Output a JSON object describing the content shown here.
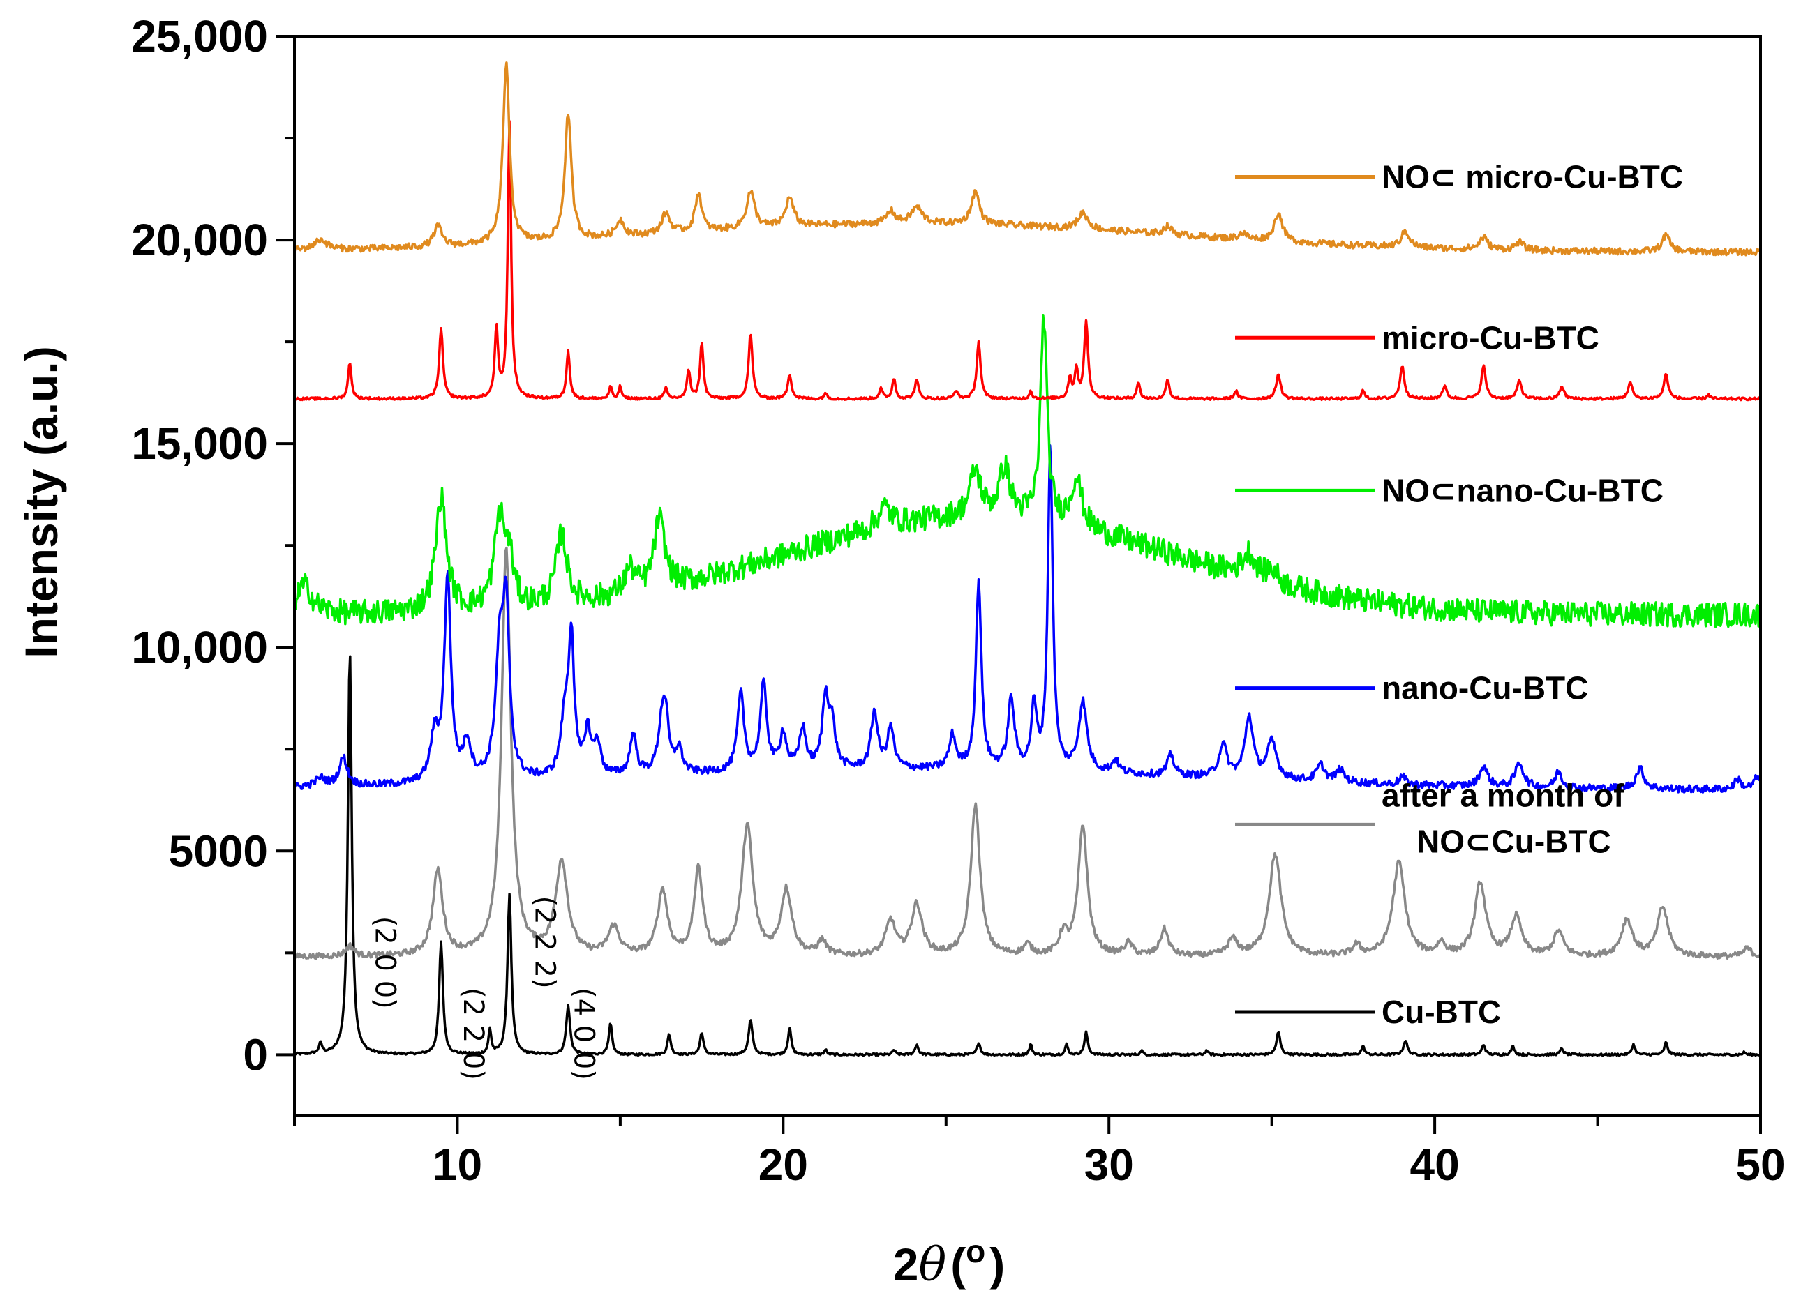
{
  "chart_data": {
    "type": "line",
    "title": "",
    "xlabel_main": "2",
    "xlabel_theta": "θ",
    "xlabel_paren_open": "(",
    "xlabel_degree": "o",
    "xlabel_paren_close": ")",
    "ylabel": "Intensity (a.u.)",
    "xlim": [
      5,
      50
    ],
    "ylim": [
      -1500,
      25000
    ],
    "x_ticks": [
      {
        "v": 10,
        "label": "10"
      },
      {
        "v": 20,
        "label": "20"
      },
      {
        "v": 30,
        "label": "30"
      },
      {
        "v": 40,
        "label": "40"
      },
      {
        "v": 50,
        "label": "50"
      }
    ],
    "y_ticks": [
      {
        "v": 0,
        "label": "0"
      },
      {
        "v": 5000,
        "label": "5000"
      },
      {
        "v": 10000,
        "label": "10,000"
      },
      {
        "v": 15000,
        "label": "15,000"
      },
      {
        "v": 20000,
        "label": "20,000"
      },
      {
        "v": 25000,
        "label": "25,000"
      }
    ],
    "legend": [
      {
        "lines": [
          "NO⊂ micro-Cu-BTC"
        ],
        "color": "#e08a1e",
        "y": 21550
      },
      {
        "lines": [
          "micro-Cu-BTC"
        ],
        "color": "#ff0000",
        "y": 17600
      },
      {
        "lines": [
          "NO⊂nano-Cu-BTC"
        ],
        "color": "#00ee00",
        "y": 13850
      },
      {
        "lines": [
          "nano-Cu-BTC"
        ],
        "color": "#0000ff",
        "y": 9000
      },
      {
        "lines": [
          "after a month of",
          "NO⊂Cu-BTC"
        ],
        "color": "#888888",
        "y": 5650
      },
      {
        "lines": [
          "Cu-BTC"
        ],
        "color": "#000000",
        "y": 1050
      }
    ],
    "annotations": [
      {
        "text": "(2 0 0)",
        "x": 7.5,
        "y": 3400
      },
      {
        "text": "(2 2 0)",
        "x": 10.2,
        "y": 1650
      },
      {
        "text": "(2 2 2)",
        "x": 12.4,
        "y": 3900
      },
      {
        "text": "(4 0 0)",
        "x": 13.6,
        "y": 1650
      }
    ],
    "series": [
      {
        "name": "Cu-BTC",
        "color": "#000000",
        "baseline": 0,
        "noise": 25,
        "hump": null,
        "peaks": [
          [
            5.8,
            250,
            0.06
          ],
          [
            6.7,
            9950,
            0.07
          ],
          [
            9.5,
            2750,
            0.07
          ],
          [
            11.0,
            600,
            0.05
          ],
          [
            11.6,
            3950,
            0.07
          ],
          [
            13.4,
            1200,
            0.07
          ],
          [
            14.7,
            750,
            0.06
          ],
          [
            16.5,
            500,
            0.06
          ],
          [
            17.5,
            550,
            0.06
          ],
          [
            19.0,
            850,
            0.07
          ],
          [
            20.2,
            650,
            0.06
          ],
          [
            21.3,
            120,
            0.05
          ],
          [
            23.4,
            120,
            0.05
          ],
          [
            24.1,
            250,
            0.06
          ],
          [
            26.0,
            300,
            0.06
          ],
          [
            27.6,
            250,
            0.05
          ],
          [
            28.7,
            250,
            0.05
          ],
          [
            29.3,
            550,
            0.06
          ],
          [
            31.0,
            100,
            0.05
          ],
          [
            33.0,
            100,
            0.05
          ],
          [
            35.2,
            550,
            0.07
          ],
          [
            37.8,
            200,
            0.06
          ],
          [
            39.1,
            350,
            0.07
          ],
          [
            41.5,
            250,
            0.06
          ],
          [
            42.4,
            200,
            0.06
          ],
          [
            43.9,
            150,
            0.06
          ],
          [
            46.1,
            250,
            0.06
          ],
          [
            47.1,
            300,
            0.06
          ],
          [
            49.5,
            60,
            0.05
          ]
        ]
      },
      {
        "name": "after a month of NO⊂Cu-BTC",
        "color": "#888888",
        "baseline": 2400,
        "noise": 70,
        "hump": null,
        "peaks": [
          [
            6.7,
            250,
            0.15
          ],
          [
            9.4,
            2100,
            0.18
          ],
          [
            11.5,
            10000,
            0.17
          ],
          [
            13.2,
            2300,
            0.22
          ],
          [
            14.8,
            700,
            0.2
          ],
          [
            16.3,
            1600,
            0.18
          ],
          [
            17.4,
            2100,
            0.16
          ],
          [
            18.9,
            3200,
            0.2
          ],
          [
            20.1,
            1600,
            0.2
          ],
          [
            21.2,
            350,
            0.15
          ],
          [
            23.3,
            850,
            0.18
          ],
          [
            24.1,
            1250,
            0.2
          ],
          [
            25.9,
            3700,
            0.17
          ],
          [
            27.5,
            250,
            0.15
          ],
          [
            28.6,
            500,
            0.15
          ],
          [
            29.2,
            3200,
            0.17
          ],
          [
            30.6,
            300,
            0.15
          ],
          [
            31.7,
            650,
            0.15
          ],
          [
            33.8,
            400,
            0.18
          ],
          [
            35.1,
            2500,
            0.22
          ],
          [
            37.6,
            250,
            0.15
          ],
          [
            38.9,
            2300,
            0.22
          ],
          [
            40.2,
            300,
            0.15
          ],
          [
            41.4,
            1800,
            0.2
          ],
          [
            42.5,
            950,
            0.2
          ],
          [
            43.8,
            600,
            0.18
          ],
          [
            45.9,
            900,
            0.2
          ],
          [
            47.0,
            1200,
            0.2
          ],
          [
            49.6,
            200,
            0.15
          ]
        ]
      },
      {
        "name": "nano-Cu-BTC",
        "color": "#0000ff",
        "baseline": 6500,
        "noise": 90,
        "hump": {
          "center": 24,
          "width": 9,
          "amp": 500
        },
        "peaks": [
          [
            5.8,
            200,
            0.2
          ],
          [
            6.5,
            700,
            0.15
          ],
          [
            9.3,
            1100,
            0.15
          ],
          [
            9.7,
            5000,
            0.12
          ],
          [
            10.3,
            900,
            0.15
          ],
          [
            11.3,
            3000,
            0.15
          ],
          [
            11.5,
            3800,
            0.12
          ],
          [
            13.3,
            1400,
            0.15
          ],
          [
            13.5,
            3300,
            0.1
          ],
          [
            14.0,
            1100,
            0.12
          ],
          [
            14.3,
            800,
            0.12
          ],
          [
            15.4,
            1000,
            0.12
          ],
          [
            16.3,
            1400,
            0.15
          ],
          [
            16.4,
            800,
            0.1
          ],
          [
            16.8,
            600,
            0.12
          ],
          [
            18.7,
            1900,
            0.12
          ],
          [
            19.4,
            2100,
            0.12
          ],
          [
            20.0,
            900,
            0.12
          ],
          [
            20.6,
            1000,
            0.12
          ],
          [
            21.3,
            1700,
            0.12
          ],
          [
            21.5,
            1000,
            0.12
          ],
          [
            22.8,
            1400,
            0.12
          ],
          [
            23.3,
            1000,
            0.12
          ],
          [
            25.2,
            800,
            0.12
          ],
          [
            26.0,
            4600,
            0.1
          ],
          [
            27.0,
            1700,
            0.12
          ],
          [
            27.7,
            1500,
            0.1
          ],
          [
            28.2,
            7900,
            0.09
          ],
          [
            29.2,
            1700,
            0.15
          ],
          [
            30.2,
            300,
            0.12
          ],
          [
            31.9,
            500,
            0.12
          ],
          [
            33.5,
            800,
            0.15
          ],
          [
            34.3,
            1500,
            0.15
          ],
          [
            35.0,
            900,
            0.18
          ],
          [
            36.5,
            400,
            0.15
          ],
          [
            37.1,
            300,
            0.15
          ],
          [
            39.0,
            200,
            0.12
          ],
          [
            41.5,
            500,
            0.15
          ],
          [
            42.6,
            600,
            0.15
          ],
          [
            43.8,
            400,
            0.12
          ],
          [
            46.3,
            500,
            0.15
          ],
          [
            49.3,
            250,
            0.12
          ],
          [
            49.9,
            300,
            0.12
          ]
        ]
      },
      {
        "name": "NO⊂nano-Cu-BTC",
        "color": "#00ee00",
        "baseline": 10800,
        "noise": 300,
        "hump": {
          "center": 26,
          "width": 6,
          "amp": 2400
        },
        "peaks": [
          [
            5.3,
            700,
            0.3
          ],
          [
            9.5,
            2800,
            0.2
          ],
          [
            11.3,
            2200,
            0.2
          ],
          [
            11.6,
            1000,
            0.15
          ],
          [
            13.2,
            1700,
            0.2
          ],
          [
            15.3,
            600,
            0.2
          ],
          [
            16.2,
            1700,
            0.2
          ],
          [
            23.1,
            500,
            0.25
          ],
          [
            25.9,
            1100,
            0.2
          ],
          [
            26.8,
            1200,
            0.2
          ],
          [
            28.0,
            5000,
            0.12
          ],
          [
            29.0,
            1200,
            0.2
          ],
          [
            34.3,
            600,
            0.25
          ],
          [
            35.0,
            300,
            0.2
          ]
        ]
      },
      {
        "name": "micro-Cu-BTC",
        "color": "#ff0000",
        "baseline": 16100,
        "noise": 30,
        "hump": null,
        "peaks": [
          [
            6.7,
            900,
            0.06
          ],
          [
            9.5,
            1700,
            0.07
          ],
          [
            11.2,
            1700,
            0.06
          ],
          [
            11.6,
            6800,
            0.06
          ],
          [
            13.4,
            1200,
            0.06
          ],
          [
            14.7,
            300,
            0.05
          ],
          [
            15.0,
            300,
            0.05
          ],
          [
            16.4,
            250,
            0.06
          ],
          [
            17.1,
            700,
            0.06
          ],
          [
            17.5,
            1400,
            0.06
          ],
          [
            19.0,
            1600,
            0.07
          ],
          [
            20.2,
            600,
            0.07
          ],
          [
            21.3,
            150,
            0.05
          ],
          [
            23.0,
            250,
            0.06
          ],
          [
            23.4,
            500,
            0.06
          ],
          [
            24.1,
            450,
            0.07
          ],
          [
            25.3,
            200,
            0.06
          ],
          [
            26.0,
            1400,
            0.07
          ],
          [
            27.6,
            200,
            0.05
          ],
          [
            28.8,
            500,
            0.06
          ],
          [
            29.0,
            700,
            0.06
          ],
          [
            29.3,
            1900,
            0.07
          ],
          [
            30.9,
            400,
            0.06
          ],
          [
            31.8,
            500,
            0.06
          ],
          [
            33.9,
            200,
            0.06
          ],
          [
            35.2,
            600,
            0.08
          ],
          [
            37.8,
            200,
            0.06
          ],
          [
            39.0,
            800,
            0.08
          ],
          [
            40.3,
            300,
            0.08
          ],
          [
            41.5,
            800,
            0.08
          ],
          [
            42.6,
            450,
            0.08
          ],
          [
            43.9,
            300,
            0.08
          ],
          [
            46.0,
            400,
            0.08
          ],
          [
            47.1,
            600,
            0.08
          ],
          [
            48.4,
            100,
            0.06
          ]
        ]
      },
      {
        "name": "NO⊂ micro-Cu-BTC",
        "color": "#e08a1e",
        "baseline": 19700,
        "noise": 80,
        "hump": {
          "center": 24,
          "width": 8,
          "amp": 700
        },
        "peaks": [
          [
            5.8,
            250,
            0.25
          ],
          [
            9.4,
            500,
            0.15
          ],
          [
            11.5,
            4400,
            0.12
          ],
          [
            13.4,
            3100,
            0.12
          ],
          [
            15.0,
            400,
            0.15
          ],
          [
            16.4,
            500,
            0.15
          ],
          [
            17.4,
            950,
            0.12
          ],
          [
            19.0,
            900,
            0.15
          ],
          [
            20.2,
            700,
            0.15
          ],
          [
            23.3,
            300,
            0.15
          ],
          [
            24.1,
            400,
            0.2
          ],
          [
            25.9,
            800,
            0.15
          ],
          [
            29.2,
            400,
            0.18
          ],
          [
            31.8,
            200,
            0.15
          ],
          [
            34.1,
            150,
            0.15
          ],
          [
            35.2,
            700,
            0.15
          ],
          [
            39.1,
            400,
            0.15
          ],
          [
            41.5,
            300,
            0.15
          ],
          [
            42.6,
            200,
            0.15
          ],
          [
            47.1,
            400,
            0.15
          ]
        ]
      }
    ]
  }
}
